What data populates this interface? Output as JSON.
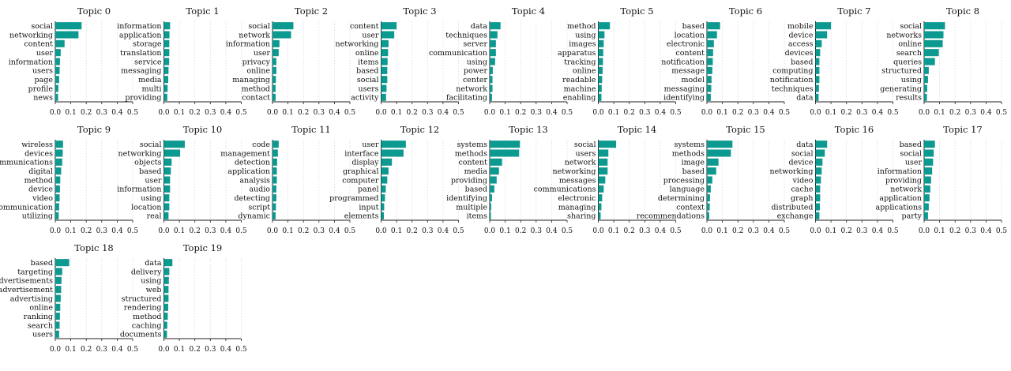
{
  "colors": {
    "bar": "#0c9990",
    "grid": "#d9d9d9",
    "axis": "#222222",
    "background": "#ffffff"
  },
  "chart_data": {
    "type": "bar",
    "orientation": "horizontal",
    "xlim": [
      0,
      0.5
    ],
    "xticks": [
      "0.0",
      "0.1",
      "0.2",
      "0.3",
      "0.4",
      "0.5"
    ],
    "grid": "vertical dashed",
    "panels": [
      {
        "title": "Topic 0",
        "words": [
          "social",
          "networking",
          "content",
          "user",
          "information",
          "users",
          "page",
          "profile",
          "news"
        ],
        "values": [
          0.17,
          0.15,
          0.06,
          0.035,
          0.03,
          0.028,
          0.025,
          0.02,
          0.018
        ]
      },
      {
        "title": "Topic 1",
        "words": [
          "information",
          "application",
          "storage",
          "translation",
          "service",
          "messaging",
          "media",
          "multi",
          "providing"
        ],
        "values": [
          0.04,
          0.036,
          0.035,
          0.035,
          0.034,
          0.03,
          0.028,
          0.024,
          0.022
        ]
      },
      {
        "title": "Topic 2",
        "words": [
          "social",
          "network",
          "information",
          "user",
          "privacy",
          "online",
          "managing",
          "method",
          "contact"
        ],
        "values": [
          0.135,
          0.12,
          0.045,
          0.04,
          0.025,
          0.025,
          0.022,
          0.02,
          0.02
        ]
      },
      {
        "title": "Topic 3",
        "words": [
          "content",
          "user",
          "networking",
          "online",
          "items",
          "based",
          "social",
          "users",
          "activity"
        ],
        "values": [
          0.1,
          0.085,
          0.048,
          0.045,
          0.042,
          0.04,
          0.04,
          0.035,
          0.032
        ]
      },
      {
        "title": "Topic 4",
        "words": [
          "data",
          "techniques",
          "server",
          "communication",
          "using",
          "power",
          "center",
          "network",
          "facilitating"
        ],
        "values": [
          0.07,
          0.05,
          0.04,
          0.04,
          0.035,
          0.02,
          0.018,
          0.018,
          0.015
        ]
      },
      {
        "title": "Topic 5",
        "words": [
          "method",
          "using",
          "images",
          "apparatus",
          "tracking",
          "online",
          "readable",
          "machine",
          "enabling"
        ],
        "values": [
          0.075,
          0.04,
          0.035,
          0.032,
          0.03,
          0.028,
          0.025,
          0.022,
          0.02
        ]
      },
      {
        "title": "Topic 6",
        "words": [
          "based",
          "location",
          "electronic",
          "content",
          "notification",
          "message",
          "model",
          "messaging",
          "identifying"
        ],
        "values": [
          0.085,
          0.065,
          0.045,
          0.04,
          0.038,
          0.035,
          0.03,
          0.028,
          0.025
        ]
      },
      {
        "title": "Topic 7",
        "words": [
          "mobile",
          "device",
          "access",
          "devices",
          "based",
          "computing",
          "notification",
          "techniques",
          "data"
        ],
        "values": [
          0.1,
          0.075,
          0.04,
          0.03,
          0.025,
          0.025,
          0.025,
          0.022,
          0.02
        ]
      },
      {
        "title": "Topic 8",
        "words": [
          "social",
          "networks",
          "online",
          "search",
          "queries",
          "structured",
          "using",
          "generating",
          "results"
        ],
        "values": [
          0.135,
          0.125,
          0.12,
          0.095,
          0.07,
          0.03,
          0.025,
          0.02,
          0.018
        ]
      },
      {
        "title": "Topic 9",
        "words": [
          "wireless",
          "devices",
          "communications",
          "digital",
          "method",
          "device",
          "video",
          "communication",
          "utilizing"
        ],
        "values": [
          0.05,
          0.048,
          0.045,
          0.038,
          0.032,
          0.03,
          0.028,
          0.025,
          0.022
        ]
      },
      {
        "title": "Topic 10",
        "words": [
          "social",
          "networking",
          "objects",
          "based",
          "user",
          "information",
          "using",
          "location",
          "real"
        ],
        "values": [
          0.135,
          0.105,
          0.05,
          0.045,
          0.04,
          0.04,
          0.035,
          0.035,
          0.03
        ]
      },
      {
        "title": "Topic 11",
        "words": [
          "code",
          "management",
          "detection",
          "application",
          "analysis",
          "audio",
          "detecting",
          "script",
          "dynamic"
        ],
        "values": [
          0.04,
          0.035,
          0.03,
          0.028,
          0.028,
          0.025,
          0.025,
          0.022,
          0.02
        ]
      },
      {
        "title": "Topic 12",
        "words": [
          "user",
          "interface",
          "display",
          "graphical",
          "computer",
          "panel",
          "programmed",
          "input",
          "elements"
        ],
        "values": [
          0.16,
          0.145,
          0.07,
          0.048,
          0.04,
          0.03,
          0.025,
          0.02,
          0.018
        ]
      },
      {
        "title": "Topic 13",
        "words": [
          "systems",
          "methods",
          "content",
          "media",
          "providing",
          "based",
          "identifying",
          "multiple",
          "items"
        ],
        "values": [
          0.195,
          0.19,
          0.08,
          0.06,
          0.045,
          0.03,
          0.015,
          0.01,
          0.008
        ]
      },
      {
        "title": "Topic 14",
        "words": [
          "social",
          "users",
          "network",
          "networking",
          "messages",
          "communications",
          "electronic",
          "managing",
          "sharing"
        ],
        "values": [
          0.115,
          0.065,
          0.06,
          0.06,
          0.045,
          0.035,
          0.025,
          0.02,
          0.015
        ]
      },
      {
        "title": "Topic 15",
        "words": [
          "systems",
          "methods",
          "image",
          "based",
          "processing",
          "language",
          "determining",
          "context",
          "recommendations"
        ],
        "values": [
          0.165,
          0.155,
          0.075,
          0.06,
          0.035,
          0.025,
          0.02,
          0.018,
          0.015
        ]
      },
      {
        "title": "Topic 16",
        "words": [
          "data",
          "social",
          "device",
          "networking",
          "video",
          "cache",
          "graph",
          "distributed",
          "exchange"
        ],
        "values": [
          0.075,
          0.06,
          0.045,
          0.04,
          0.035,
          0.03,
          0.03,
          0.028,
          0.025
        ]
      },
      {
        "title": "Topic 17",
        "words": [
          "based",
          "social",
          "user",
          "information",
          "providing",
          "network",
          "application",
          "applications",
          "party"
        ],
        "values": [
          0.07,
          0.062,
          0.058,
          0.052,
          0.045,
          0.04,
          0.035,
          0.03,
          0.025
        ]
      },
      {
        "title": "Topic 18",
        "words": [
          "based",
          "targeting",
          "advertisements",
          "advertisement",
          "advertising",
          "online",
          "ranking",
          "search",
          "users"
        ],
        "values": [
          0.09,
          0.045,
          0.04,
          0.038,
          0.035,
          0.032,
          0.03,
          0.028,
          0.025
        ]
      },
      {
        "title": "Topic 19",
        "words": [
          "data",
          "delivery",
          "using",
          "web",
          "structured",
          "rendering",
          "method",
          "caching",
          "documents"
        ],
        "values": [
          0.055,
          0.035,
          0.032,
          0.03,
          0.03,
          0.028,
          0.025,
          0.022,
          0.02
        ]
      }
    ]
  }
}
